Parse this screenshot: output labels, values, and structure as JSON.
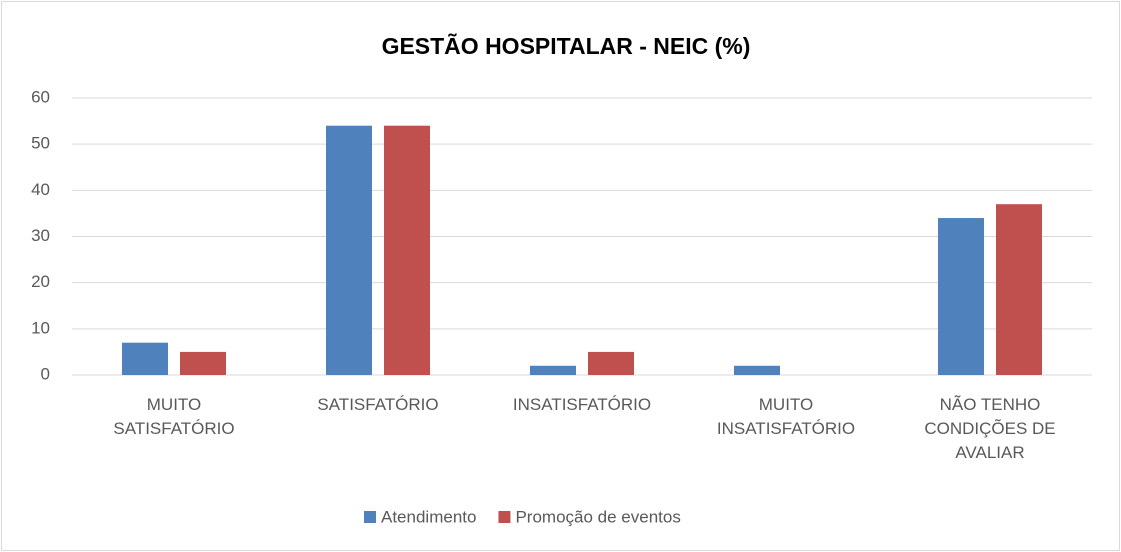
{
  "chart_data": {
    "type": "bar",
    "title": "GESTÃO HOSPITALAR - NEIC (%)",
    "categories": [
      "MUITO SATISFATÓRIO",
      "SATISFATÓRIO",
      "INSATISFATÓRIO",
      "MUITO INSATISFATÓRIO",
      "NÃO TENHO CONDIÇÕES DE AVALIAR"
    ],
    "series": [
      {
        "name": "Atendimento",
        "color": "#4f81bd",
        "values": [
          7,
          54,
          2,
          2,
          34
        ]
      },
      {
        "name": "Promoção de eventos",
        "color": "#c0504d",
        "values": [
          5,
          54,
          5,
          0,
          37
        ]
      }
    ],
    "ylim": [
      0,
      60
    ],
    "yticks": [
      0,
      10,
      20,
      30,
      40,
      50,
      60
    ],
    "grid": true,
    "legend": "bottom"
  }
}
